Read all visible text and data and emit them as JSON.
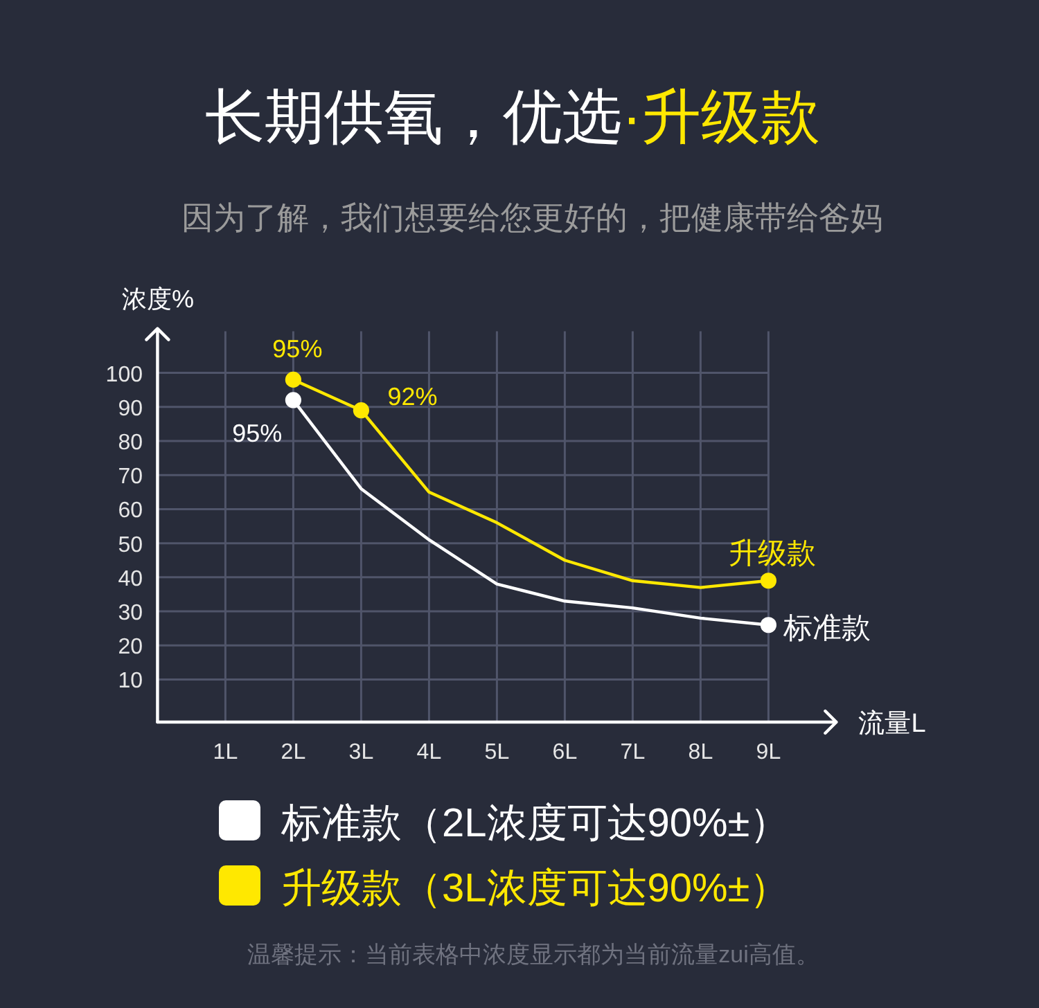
{
  "chart_data": {
    "type": "line",
    "title": "长期供氧，优选·升级款",
    "subtitle": "因为了解，我们想要给您更好的，把健康带给爸妈",
    "xlabel": "流量L",
    "ylabel": "浓度%",
    "x": [
      2,
      3,
      4,
      5,
      6,
      7,
      8,
      9
    ],
    "series": [
      {
        "name": "标准款（2L浓度可达90%±）",
        "color": "#ffffff",
        "values": [
          92,
          66,
          51,
          38,
          33,
          31,
          28,
          26
        ]
      },
      {
        "name": "升级款（3L浓度可达90%±）",
        "color": "#ffe800",
        "values": [
          98,
          89,
          65,
          56,
          45,
          39,
          37,
          39
        ]
      },
      {
        "type": "scatter",
        "marker": "circle",
        "color": "#ffffff",
        "x": [
          2,
          9
        ],
        "values": [
          92,
          26
        ]
      },
      {
        "type": "scatter",
        "marker": "circle",
        "color": "#ffe800",
        "x": [
          2,
          3,
          9
        ],
        "values": [
          98,
          89,
          39
        ]
      }
    ],
    "xlim": [
      0,
      10
    ],
    "ylim": [
      -2.5,
      113
    ],
    "xticks": [
      {
        "value": 1,
        "label": "1L"
      },
      {
        "value": 2,
        "label": "2L"
      },
      {
        "value": 3,
        "label": "3L"
      },
      {
        "value": 4,
        "label": "4L"
      },
      {
        "value": 5,
        "label": "5L"
      },
      {
        "value": 6,
        "label": "6L"
      },
      {
        "value": 7,
        "label": "7L"
      },
      {
        "value": 8,
        "label": "8L"
      },
      {
        "value": 9,
        "label": "9L"
      }
    ],
    "yticks": [
      10,
      20,
      30,
      40,
      50,
      60,
      70,
      80,
      90,
      100
    ],
    "grid": true,
    "legend": "bottom",
    "annotations": [
      {
        "text": "95%",
        "x": 2,
        "y": 98
      },
      {
        "text": "92%",
        "x": 3,
        "y": 89
      },
      {
        "text": "95%",
        "x": 2,
        "y": 92
      },
      {
        "text": "升级款",
        "x": 9,
        "y": 39
      },
      {
        "text": "标准款",
        "x": 9,
        "y": 26
      },
      "温馨提示：当前表格中浓度显示都为当前流量zui高值。"
    ]
  }
}
